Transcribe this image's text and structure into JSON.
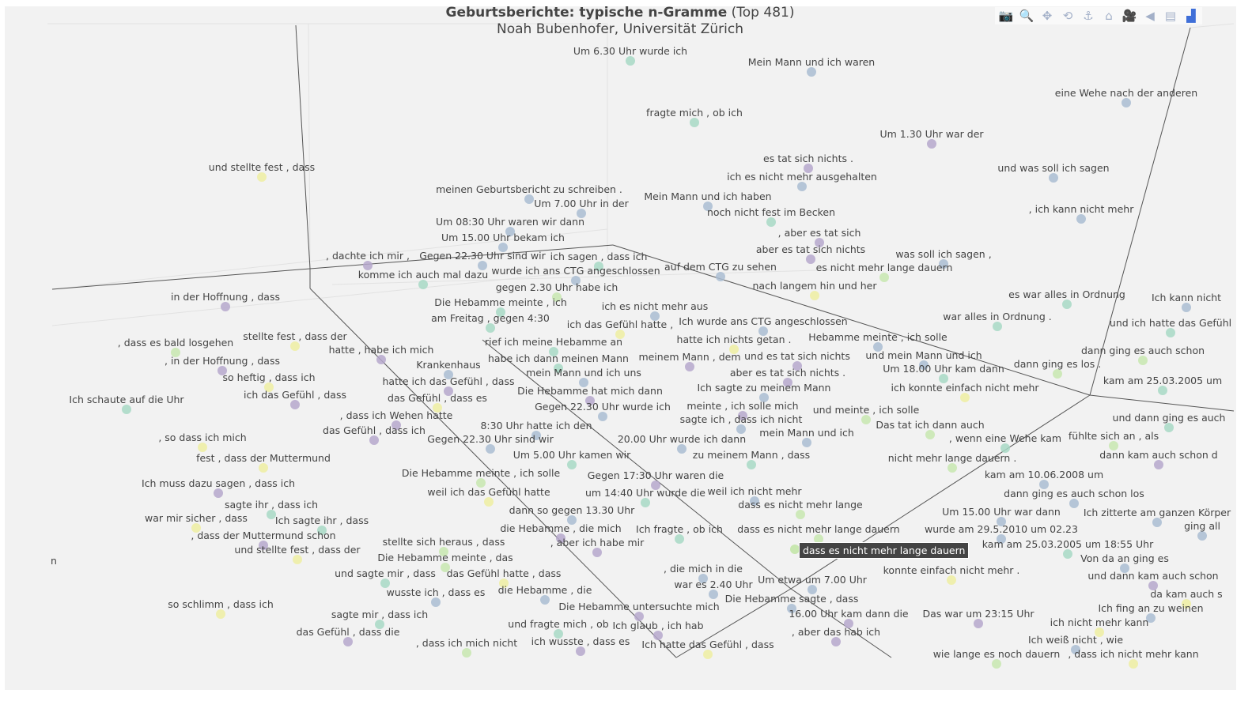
{
  "title": {
    "bold": "Geburtsberichte: typische n-Gramme",
    "suffix": "(Top 481)",
    "subtitle": "Noah Bubenhofer, Universität Zürich"
  },
  "toolbar": [
    {
      "icon": "camera-icon",
      "glyph": "📷",
      "label": "Download plot as png"
    },
    {
      "icon": "zoom-icon",
      "glyph": "🔍",
      "label": "Zoom"
    },
    {
      "icon": "pan-icon",
      "glyph": "✥",
      "label": "Pan"
    },
    {
      "icon": "orbit-rotation-icon",
      "glyph": "⟲",
      "label": "Orbital rotation"
    },
    {
      "icon": "turntable-icon",
      "glyph": "⚓",
      "label": "Turntable rotation"
    },
    {
      "icon": "home-icon",
      "glyph": "⌂",
      "label": "Reset camera"
    },
    {
      "icon": "camera-video-icon",
      "glyph": "🎥",
      "label": "Save camera"
    },
    {
      "icon": "spikelines-icon",
      "glyph": "◀",
      "label": "Toggle spike lines"
    },
    {
      "icon": "hover-icon",
      "glyph": "▤",
      "label": "Toggle hover"
    },
    {
      "icon": "plotly-logo-icon",
      "glyph": "▟",
      "label": "Plotly"
    }
  ],
  "tooltip": "dass es nicht mehr lange dauern",
  "colors": {
    "p": "#b6a8cc",
    "b": "#aabdd2",
    "t": "#a8d9c6",
    "g": "#c8e7b0",
    "y": "#efeea2"
  },
  "chart_data": {
    "type": "scatter3d",
    "title": "Geburtsberichte: typische n-Gramme (Top 481)",
    "grid": true,
    "points": [
      {
        "text": "Um 6.30 Uhr wurde ich",
        "c": "t"
      },
      {
        "text": "Mein Mann und ich waren",
        "c": "b"
      },
      {
        "text": "eine Wehe nach der anderen",
        "c": "b"
      },
      {
        "text": "fragte mich , ob ich",
        "c": "t"
      },
      {
        "text": "Um 1.30 Uhr war der",
        "c": "p"
      },
      {
        "text": "und stellte fest , dass",
        "c": "y"
      },
      {
        "text": "es tat sich nichts .",
        "c": "p"
      },
      {
        "text": "ich es nicht mehr ausgehalten",
        "c": "b"
      },
      {
        "text": "und was soll ich sagen",
        "c": "b"
      },
      {
        "text": "meinen Geburtsbericht zu schreiben .",
        "c": "b"
      },
      {
        "text": "Mein Mann und ich haben",
        "c": "b"
      },
      {
        "text": "noch nicht fest im Becken",
        "c": "t"
      },
      {
        "text": ", ich kann nicht mehr",
        "c": "b"
      },
      {
        "text": "Um 7.00 Uhr in der",
        "c": "b"
      },
      {
        "text": "Um 08:30 Uhr waren wir dann",
        "c": "b"
      },
      {
        "text": "Um 15.00 Uhr bekam ich",
        "c": "b"
      },
      {
        "text": "Gegen 22.30 Uhr sind wir",
        "c": "b"
      },
      {
        "text": ", aber es tat sich",
        "c": "p"
      },
      {
        "text": ", dachte ich mir ,",
        "c": "p"
      },
      {
        "text": "komme ich auch mal dazu",
        "c": "t"
      },
      {
        "text": "ich sagen , dass ich",
        "c": "t"
      },
      {
        "text": "aber es tat sich nichts",
        "c": "p"
      },
      {
        "text": "auf dem CTG zu sehen",
        "c": "b"
      },
      {
        "text": "nach langem hin und her",
        "c": "y"
      },
      {
        "text": "es nicht mehr lange dauern",
        "c": "g"
      },
      {
        "text": "was soll ich sagen ,",
        "c": "b"
      },
      {
        "text": "in der Hoffnung , dass",
        "c": "p"
      },
      {
        "text": "Ich kann nicht",
        "c": "b"
      },
      {
        "text": "es war alles in Ordnung",
        "c": "t"
      },
      {
        "text": "war alles in Ordnung .",
        "c": "t"
      },
      {
        "text": "und ich hatte das Gefühl",
        "c": "t"
      },
      {
        "text": "stellte fest , dass der",
        "c": "y"
      },
      {
        "text": ", dass es bald losgehen",
        "c": "g"
      },
      {
        "text": "Die Hebamme meinte , ich",
        "c": "t"
      },
      {
        "text": "gegen 2.30 Uhr habe ich",
        "c": "g"
      },
      {
        "text": "wurde ich ans CTG angeschlossen",
        "c": "b"
      },
      {
        "text": "ich es nicht mehr aus",
        "c": "b"
      },
      {
        "text": "am Freitag , gegen 4:30",
        "c": "t"
      },
      {
        "text": "ich das Gefühl hatte ,",
        "c": "y"
      },
      {
        "text": "Ich wurde ans CTG angeschlossen",
        "c": "b"
      },
      {
        "text": "hatte ich nichts getan .",
        "c": "y"
      },
      {
        "text": "Hebamme meinte , ich solle",
        "c": "b"
      },
      {
        "text": "und es tat sich nichts",
        "c": "p"
      },
      {
        "text": "aber es tat sich nichts .",
        "c": "p"
      },
      {
        "text": "rief ich meine Hebamme an",
        "c": "t"
      },
      {
        "text": "habe ich dann meinen Mann",
        "c": "t"
      },
      {
        "text": "mein Mann und ich uns",
        "c": "b"
      },
      {
        "text": "Ich sagte zu meinem Mann",
        "c": "b"
      },
      {
        "text": "und mein Mann und ich",
        "c": "b"
      },
      {
        "text": "dann ging es auch schon",
        "c": "g"
      },
      {
        "text": "hatte , habe ich mich",
        "c": "p"
      },
      {
        "text": "Krankenhaus",
        "c": "b"
      },
      {
        "text": ", in der Hoffnung , dass",
        "c": "p"
      },
      {
        "text": "so heftig , dass ich",
        "c": "y"
      },
      {
        "text": "Um 18.00 Uhr kam dann",
        "c": "t"
      },
      {
        "text": "dann ging es los .",
        "c": "g"
      },
      {
        "text": "hatte ich das Gefühl , dass",
        "c": "p"
      },
      {
        "text": "meinem Mann , dem",
        "c": "p"
      },
      {
        "text": "kam am 25.03.2005 um",
        "c": "t"
      },
      {
        "text": "ich das Gefühl , dass",
        "c": "p"
      },
      {
        "text": "das Gefühl , dass es",
        "c": "y"
      },
      {
        "text": "Die Hebamme hat mich dann",
        "c": "p"
      },
      {
        "text": "Gegen 22.30 Uhr wurde ich",
        "c": "b"
      },
      {
        "text": "meinte , ich solle mich",
        "c": "p"
      },
      {
        "text": "sagte ich , dass ich nicht",
        "c": "b"
      },
      {
        "text": "ich konnte einfach nicht mehr",
        "c": "y"
      },
      {
        "text": "Ich schaute auf die Uhr",
        "c": "t"
      },
      {
        "text": "8:30 Uhr hatte ich den",
        "c": "b"
      },
      {
        "text": ", dass ich Wehen hatte",
        "c": "p"
      },
      {
        "text": "Gegen 22.30 Uhr sind wir",
        "c": "b"
      },
      {
        "text": "das Gefühl , dass ich",
        "c": "p"
      },
      {
        "text": "und meinte , ich solle",
        "c": "g"
      },
      {
        "text": "und dann ging es auch",
        "c": "t"
      },
      {
        "text": "fühlte sich an , als",
        "c": "g"
      },
      {
        "text": "Um 5.00 Uhr kamen wir",
        "c": "t"
      },
      {
        "text": "20.00 Uhr wurde ich dann",
        "c": "b"
      },
      {
        "text": "mein Mann und ich",
        "c": "b"
      },
      {
        "text": "Das tat ich dann auch",
        "c": "g"
      },
      {
        "text": ", wenn eine Wehe kam",
        "c": "t"
      },
      {
        "text": ", so dass ich mich",
        "c": "y"
      },
      {
        "text": "zu meinem Mann , dass",
        "c": "t"
      },
      {
        "text": "dann kam auch schon d",
        "c": "p"
      },
      {
        "text": "fest , dass der Muttermund",
        "c": "y"
      },
      {
        "text": "nicht mehr lange dauern .",
        "c": "g"
      },
      {
        "text": "Die Hebamme meinte , ich solle",
        "c": "g"
      },
      {
        "text": "Gegen 17:30 Uhr waren die",
        "c": "p"
      },
      {
        "text": "kam am 10.06.2008 um",
        "c": "b"
      },
      {
        "text": "dann ging es auch schon los",
        "c": "b"
      },
      {
        "text": "Ich muss dazu sagen , dass ich",
        "c": "p"
      },
      {
        "text": "weil ich das Gefühl hatte",
        "c": "y"
      },
      {
        "text": "um 14:40 Uhr wurde die",
        "c": "t"
      },
      {
        "text": "weil ich nicht mehr",
        "c": "b"
      },
      {
        "text": "Ich zitterte am ganzen Körper",
        "c": "b"
      },
      {
        "text": "Um 15.00 Uhr war dann",
        "c": "b"
      },
      {
        "text": "wurde am 29.5.2010 um 02.23",
        "c": "b"
      },
      {
        "text": "sagte ihr , dass ich",
        "c": "t"
      },
      {
        "text": "dass es nicht mehr lange",
        "c": "g"
      },
      {
        "text": "dann so gegen 13.30 Uhr",
        "c": "b"
      },
      {
        "text": "Ich sagte ihr , dass",
        "c": "t"
      },
      {
        "text": "war mir sicher , dass",
        "c": "y"
      },
      {
        "text": "die Hebamme , die mich",
        "c": "p"
      },
      {
        "text": ", dass der Muttermund schon",
        "c": "p"
      },
      {
        "text": "ging all",
        "c": "b"
      },
      {
        "text": "kam am 25.03.2005 um 18:55 Uhr",
        "c": "t"
      },
      {
        "text": ", aber ich habe mir",
        "c": "p"
      },
      {
        "text": "Ich fragte , ob ich",
        "c": "t"
      },
      {
        "text": "stellte sich heraus , dass",
        "c": "g"
      },
      {
        "text": "dass es nicht mehr lange dauern",
        "c": "g"
      },
      {
        "text": "und stellte fest , dass der",
        "c": "y"
      },
      {
        "text": "Die Hebamme meinte , das",
        "c": "g"
      },
      {
        "text": "das Gefühl hatte , dass",
        "c": "y"
      },
      {
        "text": "Von da an ging es",
        "c": "b"
      },
      {
        "text": "und dann kam auch schon",
        "c": "p"
      },
      {
        "text": ", die mich in die",
        "c": "b"
      },
      {
        "text": "konnte einfach nicht mehr .",
        "c": "y"
      },
      {
        "text": "wusste ich , dass es",
        "c": "b"
      },
      {
        "text": "war es 2.40 Uhr",
        "c": "b"
      },
      {
        "text": "Um etwa um 7.00 Uhr",
        "c": "b"
      },
      {
        "text": "und sagte mir , dass",
        "c": "t"
      },
      {
        "text": "die Hebamme , die",
        "c": "b"
      },
      {
        "text": "Die Hebamme untersuchte mich",
        "c": "p"
      },
      {
        "text": "Die Hebamme sagte , dass",
        "c": "b"
      },
      {
        "text": "16.00 Uhr kam dann die",
        "c": "p"
      },
      {
        "text": "da kam auch s",
        "c": "y"
      },
      {
        "text": "und fragte mich , ob",
        "c": "t"
      },
      {
        "text": "so schlimm , dass ich",
        "c": "y"
      },
      {
        "text": "Ich glaub , ich hab",
        "c": "p"
      },
      {
        "text": "Das war um 23:15 Uhr",
        "c": "p"
      },
      {
        "text": "Ich fing an zu weinen",
        "c": "b"
      },
      {
        "text": "ich nicht mehr kann",
        "c": "y"
      },
      {
        "text": "sagte mir , dass ich",
        "c": "t"
      },
      {
        "text": "das Gefühl , dass die",
        "c": "p"
      },
      {
        "text": ", dass ich mich nicht",
        "c": "g"
      },
      {
        "text": "ich wusste , dass es",
        "c": "p"
      },
      {
        "text": "Ich hatte das Gefühl , dass",
        "c": "y"
      },
      {
        "text": ", aber das hab ich",
        "c": "p"
      },
      {
        "text": "Ich weiß nicht , wie",
        "c": "b"
      },
      {
        "text": "wie lange es noch dauern",
        "c": "g"
      },
      {
        "text": ", dass ich nicht mehr kann",
        "c": "y"
      },
      {
        "text": "n",
        "c": ""
      }
    ]
  }
}
